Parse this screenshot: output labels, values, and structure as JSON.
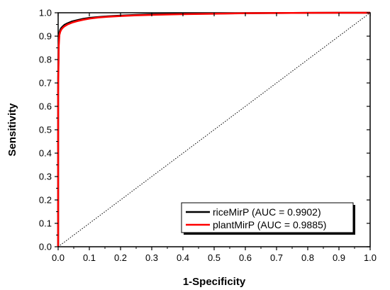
{
  "chart_data": {
    "type": "line",
    "title": "",
    "xlabel": "1-Specificity",
    "ylabel": "Sensitivity",
    "xlim": [
      0.0,
      1.0
    ],
    "ylim": [
      0.0,
      1.0
    ],
    "xticks": [
      "0.0",
      "0.1",
      "0.2",
      "0.3",
      "0.4",
      "0.5",
      "0.6",
      "0.7",
      "0.8",
      "0.9",
      "1.0"
    ],
    "yticks": [
      "0.0",
      "0.1",
      "0.2",
      "0.3",
      "0.4",
      "0.5",
      "0.6",
      "0.7",
      "0.8",
      "0.9",
      "1.0"
    ],
    "grid": false,
    "legend_position": "bottom-right",
    "series": [
      {
        "name": "riceMirP (AUC = 0.9902)",
        "color": "#000000",
        "x": [
          0.0,
          0.0,
          0.002,
          0.004,
          0.007,
          0.01,
          0.015,
          0.02,
          0.03,
          0.045,
          0.06,
          0.08,
          0.1,
          0.13,
          0.16,
          0.2,
          0.25,
          0.3,
          0.4,
          0.5,
          0.6,
          0.7,
          0.8,
          0.9,
          1.0
        ],
        "y": [
          0.0,
          0.72,
          0.88,
          0.915,
          0.928,
          0.935,
          0.942,
          0.948,
          0.955,
          0.963,
          0.968,
          0.974,
          0.978,
          0.982,
          0.985,
          0.988,
          0.991,
          0.993,
          0.995,
          0.997,
          0.998,
          0.999,
          0.9995,
          1.0,
          1.0
        ]
      },
      {
        "name": "plantMirP (AUC = 0.9885)",
        "color": "#ff0000",
        "x": [
          0.0,
          0.0,
          0.002,
          0.004,
          0.007,
          0.01,
          0.015,
          0.02,
          0.03,
          0.045,
          0.06,
          0.08,
          0.1,
          0.13,
          0.16,
          0.2,
          0.25,
          0.3,
          0.4,
          0.5,
          0.6,
          0.7,
          0.8,
          0.9,
          1.0
        ],
        "y": [
          0.0,
          0.66,
          0.86,
          0.905,
          0.92,
          0.928,
          0.936,
          0.942,
          0.95,
          0.958,
          0.964,
          0.97,
          0.975,
          0.98,
          0.983,
          0.986,
          0.989,
          0.991,
          0.994,
          0.996,
          0.998,
          0.999,
          0.9995,
          1.0,
          1.0
        ]
      },
      {
        "name": "",
        "style": "dotted",
        "color": "#000000",
        "x": [
          0.0,
          1.0
        ],
        "y": [
          0.0,
          1.0
        ]
      }
    ]
  }
}
